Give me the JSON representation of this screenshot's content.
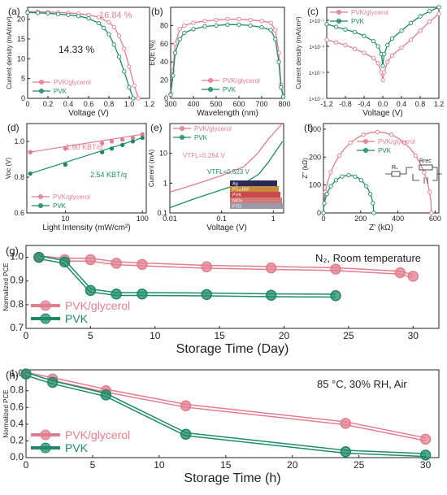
{
  "colors": {
    "pvk_glycerol": "#e27d8e",
    "pvk": "#1d8a68",
    "axis": "#222222"
  },
  "chart_data": [
    {
      "id": "a",
      "panel_label": "(a)",
      "type": "line",
      "xlabel": "Voltage (V)",
      "ylabel": "Current density (mA/cm²)",
      "xlim": [
        0,
        1.2
      ],
      "ylim": [
        0,
        23
      ],
      "xticks": [
        0,
        0.2,
        0.4,
        0.6,
        0.8,
        1.0,
        1.2
      ],
      "xtick_labels": [
        "0",
        "0.2",
        "0.4",
        "0.6",
        "0.8",
        "1.0",
        "1.2"
      ],
      "yticks": [
        0,
        5,
        10,
        15,
        20
      ],
      "ytick_labels": [
        "0",
        "5",
        "10",
        "15",
        "20"
      ],
      "legend": [
        "PVK/glycerol",
        "PVK"
      ],
      "legend_position": "bottom-left",
      "annotations": [
        "16.84 %",
        "14.33 %"
      ],
      "series": [
        {
          "name": "PVK/glycerol",
          "color_key": "pvk_glycerol",
          "marker": "circle",
          "x": [
            0,
            0.1,
            0.2,
            0.3,
            0.4,
            0.5,
            0.6,
            0.7,
            0.8,
            0.85,
            0.9,
            0.95,
            1.0,
            1.05,
            1.09
          ],
          "y": [
            21.9,
            21.9,
            21.8,
            21.7,
            21.6,
            21.4,
            21.1,
            20.5,
            19.2,
            18.0,
            15.8,
            12.5,
            8.0,
            3.2,
            0
          ]
        },
        {
          "name": "PVK",
          "color_key": "pvk",
          "marker": "circle",
          "x": [
            0,
            0.1,
            0.2,
            0.3,
            0.4,
            0.5,
            0.6,
            0.7,
            0.75,
            0.8,
            0.85,
            0.9,
            0.95,
            1.0,
            1.04
          ],
          "y": [
            21.7,
            21.6,
            21.5,
            21.3,
            21.1,
            20.8,
            20.2,
            19.0,
            17.8,
            16.2,
            13.6,
            10.5,
            6.8,
            2.8,
            0
          ]
        }
      ]
    },
    {
      "id": "b",
      "panel_label": "(b)",
      "type": "line",
      "xlabel": "Wavelength (nm)",
      "ylabel": "EQE (%)",
      "xlim": [
        300,
        800
      ],
      "ylim": [
        0,
        100
      ],
      "xticks": [
        300,
        400,
        500,
        600,
        700,
        800
      ],
      "xtick_labels": [
        "300",
        "400",
        "500",
        "600",
        "700",
        "800"
      ],
      "yticks": [
        0,
        20,
        40,
        60,
        80
      ],
      "ytick_labels": [
        "0",
        "20",
        "40",
        "60",
        "80"
      ],
      "legend": [
        "PVK/glycerol",
        "PVK"
      ],
      "legend_position": "bottom-center",
      "series": [
        {
          "name": "PVK/glycerol",
          "color_key": "pvk_glycerol",
          "marker": "circle",
          "x": [
            300,
            310,
            320,
            340,
            360,
            400,
            450,
            500,
            550,
            600,
            650,
            700,
            740,
            760,
            775,
            785,
            795
          ],
          "y": [
            5,
            30,
            60,
            76,
            80,
            83,
            85,
            86,
            87,
            87,
            86,
            85,
            83,
            75,
            50,
            15,
            2
          ]
        },
        {
          "name": "PVK",
          "color_key": "pvk",
          "marker": "circle",
          "x": [
            300,
            310,
            320,
            340,
            360,
            400,
            450,
            500,
            550,
            600,
            650,
            700,
            740,
            760,
            775,
            785,
            795
          ],
          "y": [
            4,
            25,
            50,
            65,
            72,
            76,
            79,
            80,
            81,
            81,
            80,
            78,
            75,
            65,
            40,
            12,
            2
          ]
        }
      ]
    },
    {
      "id": "c",
      "panel_label": "(c)",
      "type": "line",
      "xlabel": "Voltage (V)",
      "ylabel": "Current density (mA/cm²)",
      "xlim": [
        -1.2,
        1.2
      ],
      "ylim_log10": [
        -7,
        0
      ],
      "xticks": [
        -1.2,
        -0.8,
        -0.4,
        0,
        0.4,
        0.8,
        1.2
      ],
      "xtick_labels": [
        "-1.2",
        "-0.8",
        "-0.4",
        "0.0",
        "0.4",
        "0.8",
        "1.2"
      ],
      "yticks_log10": [
        -7,
        -5,
        -3,
        -1
      ],
      "ytick_labels": [
        "1×10⁻⁷",
        "1×10⁻⁵",
        "1×10⁻³",
        "1×10⁻¹"
      ],
      "legend": [
        "PVK/glycerol",
        "PVK"
      ],
      "legend_position": "top-left",
      "series": [
        {
          "name": "PVK/glycerol",
          "color_key": "pvk_glycerol",
          "marker": "circle",
          "x": [
            -1.2,
            -1.0,
            -0.8,
            -0.6,
            -0.4,
            -0.2,
            -0.1,
            -0.03,
            0,
            0.03,
            0.1,
            0.2,
            0.4,
            0.6,
            0.8,
            1.0,
            1.2
          ],
          "log10_y": [
            -2.5,
            -2.7,
            -2.9,
            -3.2,
            -3.5,
            -3.9,
            -4.3,
            -5.0,
            -5.6,
            -5.0,
            -4.2,
            -3.7,
            -3.1,
            -2.5,
            -1.8,
            -1.1,
            -0.5
          ]
        },
        {
          "name": "PVK",
          "color_key": "pvk",
          "marker": "circle",
          "x": [
            -1.2,
            -1.0,
            -0.8,
            -0.6,
            -0.4,
            -0.2,
            -0.1,
            -0.03,
            0,
            0.03,
            0.1,
            0.2,
            0.4,
            0.6,
            0.8,
            1.0,
            1.2
          ],
          "log10_y": [
            -1.3,
            -1.5,
            -1.7,
            -1.9,
            -2.2,
            -2.6,
            -3.0,
            -3.6,
            -4.5,
            -3.6,
            -2.9,
            -2.4,
            -1.8,
            -1.2,
            -0.7,
            -0.3,
            0
          ]
        }
      ]
    },
    {
      "id": "d",
      "panel_label": "(d)",
      "type": "scatter",
      "xlabel": "Light Intensity (mW/cm²)",
      "ylabel": "Voc (V)",
      "x_log10_lim": [
        0.5,
        2.05
      ],
      "ylim": [
        0.6,
        1.1
      ],
      "xticks_log10": [
        1,
        2
      ],
      "xtick_labels": [
        "10",
        "100"
      ],
      "yticks": [
        0.6,
        0.8,
        1.0
      ],
      "ytick_labels": [
        "0.6",
        "0.8",
        "1.0"
      ],
      "legend": [
        "PVK/glycerol",
        "PVK"
      ],
      "legend_position": "bottom-left",
      "annotations": [
        "1.80 KBT/q",
        "2.54 KBT/q"
      ],
      "series": [
        {
          "name": "PVK/glycerol",
          "color_key": "pvk_glycerol",
          "marker": "circle",
          "x": [
            3.5,
            10,
            30,
            40,
            55,
            75,
            100
          ],
          "y": [
            0.94,
            0.96,
            0.99,
            1.0,
            1.01,
            1.02,
            1.04
          ]
        },
        {
          "name": "PVK",
          "color_key": "pvk",
          "marker": "circle",
          "x": [
            3.5,
            10,
            30,
            40,
            55,
            75,
            100
          ],
          "y": [
            0.82,
            0.87,
            0.94,
            0.96,
            0.98,
            1.0,
            1.02
          ]
        }
      ]
    },
    {
      "id": "e",
      "panel_label": "(e)",
      "type": "line",
      "xlabel": "Voltage (V)",
      "ylabel": "Current (mA)",
      "x_log10_lim": [
        -2,
        0.2
      ],
      "y_log10_lim": [
        -1,
        2
      ],
      "xticks_log10": [
        -2,
        -1,
        0
      ],
      "xtick_labels": [
        "0.01",
        "0.1",
        "1"
      ],
      "yticks_log10": [
        -1,
        0,
        1
      ],
      "ytick_labels": [
        "0.1",
        "1",
        "10"
      ],
      "legend": [
        "PVK/glycerol",
        "PVK"
      ],
      "legend_position": "top-left",
      "annotations": [
        "VTFL=0.264 V",
        "VTFL=0.523 V"
      ],
      "layers": [
        "Ag",
        "PC₆₁BM",
        "PVK",
        "NiOx",
        "FTO"
      ],
      "series": [
        {
          "name": "PVK/glycerol",
          "color_key": "pvk_glycerol",
          "marker": "line",
          "x": [
            0.01,
            0.03,
            0.1,
            0.264,
            0.5,
            0.8,
            1.5
          ],
          "y": [
            0.5,
            0.9,
            1.8,
            3.5,
            10,
            30,
            100
          ]
        },
        {
          "name": "PVK",
          "color_key": "pvk",
          "marker": "line",
          "x": [
            0.01,
            0.03,
            0.1,
            0.3,
            0.523,
            0.8,
            1.5
          ],
          "y": [
            0.15,
            0.3,
            0.6,
            1.1,
            2.0,
            5,
            25
          ]
        }
      ]
    },
    {
      "id": "f",
      "panel_label": "(f)",
      "type": "line",
      "xlabel": "Z' (kΩ)",
      "ylabel": "Z'' (kΩ)",
      "xlim": [
        0,
        620
      ],
      "ylim": [
        0,
        320
      ],
      "xticks": [
        0,
        200,
        400,
        600
      ],
      "xtick_labels": [
        "0",
        "200",
        "400",
        "600"
      ],
      "yticks": [
        0,
        100,
        200,
        300
      ],
      "ytick_labels": [
        "0",
        "100",
        "200",
        "300"
      ],
      "legend": [
        "PVK/glycerol",
        "PVK"
      ],
      "legend_position": "top-center",
      "circuit_labels": [
        "Rₛ",
        "Rrec"
      ],
      "series": [
        {
          "name": "PVK/glycerol",
          "color_key": "pvk_glycerol",
          "marker": "circle",
          "semicircle": [
            0,
            580
          ]
        },
        {
          "name": "PVK",
          "color_key": "pvk",
          "marker": "circle",
          "semicircle": [
            0,
            270
          ]
        }
      ]
    },
    {
      "id": "g",
      "panel_label": "(g)",
      "type": "line",
      "xlabel": "Storage Time (Day)",
      "ylabel": "Normalized PCE",
      "xlim": [
        0,
        32
      ],
      "ylim": [
        0.7,
        1.05
      ],
      "xticks": [
        0,
        5,
        10,
        15,
        20,
        25,
        30
      ],
      "xtick_labels": [
        "0",
        "5",
        "10",
        "15",
        "20",
        "25",
        "30"
      ],
      "yticks": [
        0.7,
        0.8,
        0.9,
        1.0
      ],
      "ytick_labels": [
        "0.7",
        "0.8",
        "0.9",
        "1.0"
      ],
      "legend": [
        "PVK/glycerol",
        "PVK"
      ],
      "legend_position": "bottom-left",
      "annotations": [
        "N₂, Room temperature"
      ],
      "series": [
        {
          "name": "PVK/glycerol",
          "color_key": "pvk_glycerol",
          "marker": "circle",
          "x": [
            1,
            3,
            5,
            7,
            9,
            14,
            19,
            24,
            29,
            30
          ],
          "y": [
            1.0,
            0.99,
            0.99,
            0.975,
            0.97,
            0.96,
            0.955,
            0.95,
            0.935,
            0.92
          ]
        },
        {
          "name": "PVK",
          "color_key": "pvk",
          "marker": "circle",
          "x": [
            1,
            3,
            5,
            7,
            9,
            14,
            19,
            24
          ],
          "y": [
            1.0,
            0.98,
            0.86,
            0.845,
            0.845,
            0.843,
            0.84,
            0.838
          ]
        }
      ]
    },
    {
      "id": "h",
      "panel_label": "(h)",
      "type": "line",
      "xlabel": "Storage Time (h)",
      "ylabel": "Normalized PCE",
      "xlim": [
        0,
        31
      ],
      "ylim": [
        0,
        1.05
      ],
      "xticks": [
        0,
        5,
        10,
        15,
        20,
        25,
        30
      ],
      "xtick_labels": [
        "0",
        "5",
        "10",
        "15",
        "20",
        "25",
        "30"
      ],
      "yticks": [
        0.0,
        0.2,
        0.4,
        0.6,
        0.8,
        1.0
      ],
      "ytick_labels": [
        "0.0",
        "0.2",
        "0.4",
        "0.6",
        "0.8",
        "1.0"
      ],
      "legend": [
        "PVK/glycerol",
        "PVK"
      ],
      "legend_position": "bottom-left",
      "annotations": [
        "85 °C, 30% RH, Air"
      ],
      "series": [
        {
          "name": "PVK/glycerol",
          "color_key": "pvk_glycerol",
          "marker": "circle",
          "x": [
            0,
            2,
            6,
            12,
            24,
            30
          ],
          "y": [
            1.0,
            0.94,
            0.8,
            0.62,
            0.41,
            0.22
          ]
        },
        {
          "name": "PVK",
          "color_key": "pvk",
          "marker": "circle",
          "x": [
            0,
            2,
            6,
            12,
            24,
            30
          ],
          "y": [
            1.0,
            0.9,
            0.75,
            0.28,
            0.07,
            0.03
          ]
        }
      ]
    }
  ]
}
